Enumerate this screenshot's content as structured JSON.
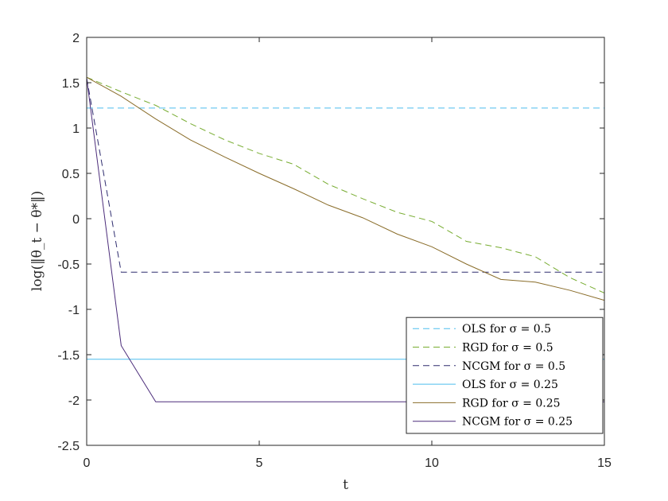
{
  "chart_data": {
    "type": "line",
    "xlabel": "t",
    "ylabel": "log(‖θ_t − θ*‖)",
    "xlim": [
      0,
      15
    ],
    "ylim": [
      -2.5,
      2
    ],
    "xticks": [
      "0",
      "5",
      "10",
      "15"
    ],
    "yticks": [
      "-2.5",
      "-2",
      "-1.5",
      "-1",
      "-0.5",
      "0",
      "0.5",
      "1",
      "1.5",
      "2"
    ],
    "grid": false,
    "legend_position": "bottom-right",
    "series": [
      {
        "name": "OLS for σ = 0.5",
        "color": "#4dbeee",
        "dash": "dashed",
        "x": [
          0,
          15
        ],
        "y": [
          1.22,
          1.22
        ]
      },
      {
        "name": "RGD for σ = 0.5",
        "color": "#77ac30",
        "dash": "dashed",
        "x": [
          0,
          1,
          2,
          3,
          4,
          5,
          6,
          7,
          8,
          9,
          10,
          11,
          12,
          13,
          14,
          15
        ],
        "y": [
          1.56,
          1.4,
          1.25,
          1.05,
          0.87,
          0.72,
          0.6,
          0.38,
          0.22,
          0.07,
          -0.03,
          -0.25,
          -0.32,
          -0.42,
          -0.65,
          -0.82
        ]
      },
      {
        "name": "NCGM for σ = 0.5",
        "color": "#2e2c6e",
        "dash": "dashed",
        "x": [
          0,
          1,
          2,
          15
        ],
        "y": [
          1.55,
          -0.59,
          -0.59,
          -0.59
        ]
      },
      {
        "name": "OLS for σ = 0.25",
        "color": "#4dbeee",
        "dash": "solid",
        "x": [
          0,
          15
        ],
        "y": [
          -1.55,
          -1.55
        ]
      },
      {
        "name": "RGD for σ = 0.25",
        "color": "#8a6d2a",
        "dash": "solid",
        "x": [
          0,
          1,
          2,
          3,
          4,
          5,
          6,
          7,
          8,
          9,
          10,
          11,
          12,
          13,
          14,
          15
        ],
        "y": [
          1.56,
          1.35,
          1.1,
          0.87,
          0.68,
          0.5,
          0.33,
          0.15,
          0.01,
          -0.17,
          -0.31,
          -0.5,
          -0.67,
          -0.7,
          -0.79,
          -0.9
        ]
      },
      {
        "name": "NCGM for σ = 0.25",
        "color": "#4b2c7a",
        "dash": "solid",
        "x": [
          0,
          1,
          2,
          15
        ],
        "y": [
          1.55,
          -1.4,
          -2.02,
          -2.02
        ]
      }
    ]
  }
}
